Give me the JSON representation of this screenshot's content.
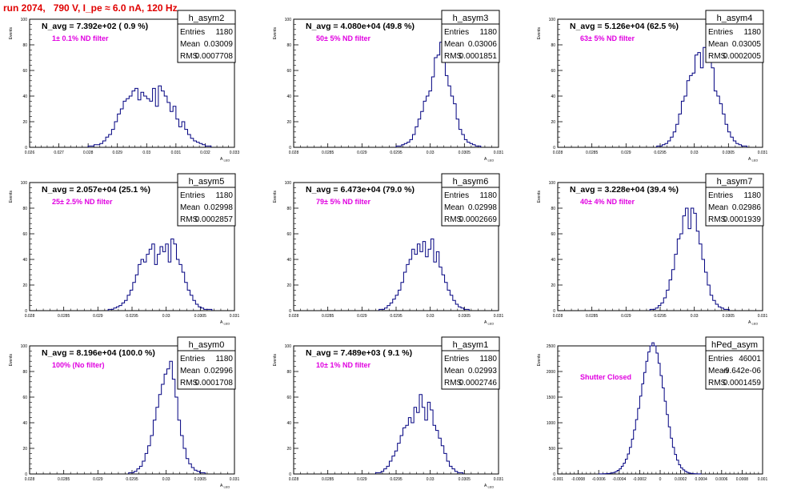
{
  "page": {
    "title": "run 2074,   790 V, I_pe ≈ 6.0 nA, 120 Hz",
    "title_color": "#e00000",
    "hist_color": "#000080",
    "note_color": "#e000e0"
  },
  "chart_data": [
    {
      "type": "histogram",
      "hist": "h_asym2",
      "nline": "N_avg = 7.392e+02 ( 0.9 %)",
      "note": "1± 0.1% ND filter",
      "stats": [
        [
          "Entries",
          "1180"
        ],
        [
          "Mean",
          "0.03009"
        ],
        [
          "RMS",
          "0.0007708"
        ]
      ],
      "ylabel": "Events",
      "xlabel": "A_LED",
      "xlim": [
        0.026,
        0.033
      ],
      "ylim": [
        0,
        100
      ],
      "xticks": [
        0.026,
        0.027,
        0.028,
        0.029,
        0.03,
        0.031,
        0.032,
        0.033
      ],
      "xtick_labels": [
        "0.026",
        "0.027",
        "0.028",
        "0.029",
        "0.03",
        "0.031",
        "0.032",
        "0.033"
      ],
      "yticks": [
        0,
        20,
        40,
        60,
        80,
        100
      ],
      "ytick_labels": [
        "0",
        "20",
        "40",
        "60",
        "80",
        "100"
      ],
      "bins": {
        "start": 0.028,
        "width": 0.0001,
        "counts": [
          1,
          1,
          2,
          2,
          3,
          5,
          8,
          10,
          14,
          20,
          26,
          30,
          36,
          38,
          40,
          44,
          46,
          37,
          43,
          40,
          38,
          36,
          46,
          32,
          48,
          44,
          40,
          35,
          28,
          32,
          22,
          16,
          20,
          14,
          10,
          7,
          5,
          4,
          3,
          2,
          1,
          1
        ]
      }
    },
    {
      "type": "histogram",
      "hist": "h_asym3",
      "nline": "N_avg = 4.080e+04 (49.8 %)",
      "note": "50± 5% ND filter",
      "stats": [
        [
          "Entries",
          "1180"
        ],
        [
          "Mean",
          "0.03006"
        ],
        [
          "RMS",
          "0.0001851"
        ]
      ],
      "ylabel": "Events",
      "xlabel": "A_LED",
      "xlim": [
        0.028,
        0.031
      ],
      "ylim": [
        0,
        100
      ],
      "xticks": [
        0.028,
        0.0285,
        0.029,
        0.0295,
        0.03,
        0.0305,
        0.031
      ],
      "xtick_labels": [
        "0.028",
        "0.0285",
        "0.029",
        "0.0295",
        "0.03",
        "0.0305",
        "0.031"
      ],
      "yticks": [
        0,
        20,
        40,
        60,
        80,
        100
      ],
      "ytick_labels": [
        "0",
        "20",
        "40",
        "60",
        "80",
        "100"
      ],
      "bins": {
        "start": 0.0295,
        "width": 4e-05,
        "counts": [
          1,
          1,
          2,
          3,
          4,
          6,
          10,
          16,
          22,
          28,
          36,
          40,
          44,
          55,
          70,
          72,
          82,
          74,
          56,
          48,
          40,
          34,
          22,
          14,
          10,
          6,
          4,
          3,
          2,
          1,
          1
        ]
      }
    },
    {
      "type": "histogram",
      "hist": "h_asym4",
      "nline": "N_avg = 5.126e+04 (62.5 %)",
      "note": "63± 5% ND filter",
      "stats": [
        [
          "Entries",
          "1180"
        ],
        [
          "Mean",
          "0.03005"
        ],
        [
          "RMS",
          "0.0002005"
        ]
      ],
      "ylabel": "Events",
      "xlabel": "A_LED",
      "xlim": [
        0.028,
        0.031
      ],
      "ylim": [
        0,
        100
      ],
      "xticks": [
        0.028,
        0.0285,
        0.029,
        0.0295,
        0.03,
        0.0305,
        0.031
      ],
      "xtick_labels": [
        "0.028",
        "0.0285",
        "0.029",
        "0.0295",
        "0.03",
        "0.0305",
        "0.031"
      ],
      "yticks": [
        0,
        20,
        40,
        60,
        80,
        100
      ],
      "ytick_labels": [
        "0",
        "20",
        "40",
        "60",
        "80",
        "100"
      ],
      "bins": {
        "start": 0.02945,
        "width": 4e-05,
        "counts": [
          1,
          1,
          2,
          3,
          5,
          8,
          12,
          18,
          26,
          36,
          40,
          52,
          56,
          58,
          72,
          74,
          62,
          78,
          68,
          70,
          62,
          44,
          40,
          34,
          26,
          18,
          12,
          8,
          5,
          3,
          2,
          1,
          1
        ]
      }
    },
    {
      "type": "histogram",
      "hist": "h_asym5",
      "nline": "N_avg = 2.057e+04 (25.1 %)",
      "note": "25± 2.5% ND filter",
      "stats": [
        [
          "Entries",
          "1180"
        ],
        [
          "Mean",
          "0.02998"
        ],
        [
          "RMS",
          "0.0002857"
        ]
      ],
      "ylabel": "Events",
      "xlabel": "A_LED",
      "xlim": [
        0.028,
        0.031
      ],
      "ylim": [
        0,
        100
      ],
      "xticks": [
        0.028,
        0.0285,
        0.029,
        0.0295,
        0.03,
        0.0305,
        0.031
      ],
      "xtick_labels": [
        "0.028",
        "0.0285",
        "0.029",
        "0.0295",
        "0.03",
        "0.0305",
        "0.031"
      ],
      "yticks": [
        0,
        20,
        40,
        60,
        80,
        100
      ],
      "ytick_labels": [
        "0",
        "20",
        "40",
        "60",
        "80",
        "100"
      ],
      "bins": {
        "start": 0.02915,
        "width": 4e-05,
        "counts": [
          1,
          1,
          2,
          3,
          4,
          6,
          8,
          12,
          16,
          22,
          28,
          36,
          40,
          38,
          44,
          48,
          52,
          36,
          44,
          50,
          46,
          52,
          38,
          56,
          52,
          40,
          36,
          30,
          22,
          16,
          12,
          8,
          5,
          3,
          2,
          1,
          1,
          1
        ]
      }
    },
    {
      "type": "histogram",
      "hist": "h_asym6",
      "nline": "N_avg = 6.473e+04 (79.0 %)",
      "note": "79± 5% ND filter",
      "stats": [
        [
          "Entries",
          "1180"
        ],
        [
          "Mean",
          "0.02998"
        ],
        [
          "RMS",
          "0.0002669"
        ]
      ],
      "ylabel": "Events",
      "xlabel": "A_LED",
      "xlim": [
        0.028,
        0.031
      ],
      "ylim": [
        0,
        100
      ],
      "xticks": [
        0.028,
        0.0285,
        0.029,
        0.0295,
        0.03,
        0.0305,
        0.031
      ],
      "xtick_labels": [
        "0.028",
        "0.0285",
        "0.029",
        "0.0295",
        "0.03",
        "0.0305",
        "0.031"
      ],
      "yticks": [
        0,
        20,
        40,
        60,
        80,
        100
      ],
      "ytick_labels": [
        "0",
        "20",
        "40",
        "60",
        "80",
        "100"
      ],
      "bins": {
        "start": 0.02925,
        "width": 4e-05,
        "counts": [
          1,
          1,
          2,
          4,
          6,
          9,
          12,
          16,
          22,
          30,
          36,
          40,
          48,
          44,
          52,
          46,
          54,
          42,
          48,
          56,
          38,
          46,
          34,
          28,
          22,
          16,
          12,
          8,
          5,
          3,
          2,
          1,
          1
        ]
      }
    },
    {
      "type": "histogram",
      "hist": "h_asym7",
      "nline": "N_avg = 3.228e+04 (39.4 %)",
      "note": "40± 4% ND filter",
      "stats": [
        [
          "Entries",
          "1180"
        ],
        [
          "Mean",
          "0.02986"
        ],
        [
          "RMS",
          "0.0001939"
        ]
      ],
      "ylabel": "Events",
      "xlabel": "A_LED",
      "xlim": [
        0.028,
        0.031
      ],
      "ylim": [
        0,
        100
      ],
      "xticks": [
        0.028,
        0.0285,
        0.029,
        0.0295,
        0.03,
        0.0305,
        0.031
      ],
      "xtick_labels": [
        "0.028",
        "0.0285",
        "0.029",
        "0.0295",
        "0.03",
        "0.0305",
        "0.031"
      ],
      "yticks": [
        0,
        20,
        40,
        60,
        80,
        100
      ],
      "ytick_labels": [
        "0",
        "20",
        "40",
        "60",
        "80",
        "100"
      ],
      "bins": {
        "start": 0.02935,
        "width": 4e-05,
        "counts": [
          1,
          1,
          2,
          4,
          6,
          10,
          16,
          24,
          32,
          44,
          56,
          60,
          74,
          80,
          64,
          80,
          76,
          62,
          52,
          40,
          30,
          20,
          12,
          8,
          5,
          3,
          2,
          1,
          1
        ]
      }
    },
    {
      "type": "histogram",
      "hist": "h_asym0",
      "nline": "N_avg = 8.196e+04 (100.0 %)",
      "note": "100% (No filter)",
      "stats": [
        [
          "Entries",
          "1180"
        ],
        [
          "Mean",
          "0.02996"
        ],
        [
          "RMS",
          "0.0001708"
        ]
      ],
      "ylabel": "Events",
      "xlabel": "A_LED",
      "xlim": [
        0.028,
        0.031
      ],
      "ylim": [
        0,
        100
      ],
      "xticks": [
        0.028,
        0.0285,
        0.029,
        0.0295,
        0.03,
        0.0305,
        0.031
      ],
      "xtick_labels": [
        "0.028",
        "0.0285",
        "0.029",
        "0.0295",
        "0.03",
        "0.0305",
        "0.031"
      ],
      "yticks": [
        0,
        20,
        40,
        60,
        80,
        100
      ],
      "ytick_labels": [
        "0",
        "20",
        "40",
        "60",
        "80",
        "100"
      ],
      "bins": {
        "start": 0.02945,
        "width": 4e-05,
        "counts": [
          1,
          1,
          2,
          4,
          6,
          10,
          16,
          22,
          30,
          42,
          52,
          62,
          70,
          78,
          82,
          88,
          74,
          60,
          42,
          30,
          20,
          12,
          8,
          5,
          3,
          2,
          1,
          1
        ]
      }
    },
    {
      "type": "histogram",
      "hist": "h_asym1",
      "nline": "N_avg = 7.489e+03 ( 9.1 %)",
      "note": "10± 1% ND filter",
      "stats": [
        [
          "Entries",
          "1180"
        ],
        [
          "Mean",
          "0.02993"
        ],
        [
          "RMS",
          "0.0002746"
        ]
      ],
      "ylabel": "Events",
      "xlabel": "A_LED",
      "xlim": [
        0.028,
        0.031
      ],
      "ylim": [
        0,
        100
      ],
      "xticks": [
        0.028,
        0.0285,
        0.029,
        0.0295,
        0.03,
        0.0305,
        0.031
      ],
      "xtick_labels": [
        "0.028",
        "0.0285",
        "0.029",
        "0.0295",
        "0.03",
        "0.0305",
        "0.031"
      ],
      "yticks": [
        0,
        20,
        40,
        60,
        80,
        100
      ],
      "ytick_labels": [
        "0",
        "20",
        "40",
        "60",
        "80",
        "100"
      ],
      "bins": {
        "start": 0.0292,
        "width": 4e-05,
        "counts": [
          1,
          1,
          2,
          4,
          6,
          10,
          14,
          18,
          24,
          30,
          36,
          38,
          44,
          40,
          52,
          48,
          62,
          52,
          42,
          56,
          50,
          38,
          34,
          28,
          22,
          16,
          10,
          6,
          4,
          2,
          1,
          1
        ]
      }
    },
    {
      "type": "histogram",
      "hist": "hPed_asym",
      "nline": "",
      "note": "Shutter Closed",
      "stats": [
        [
          "Entries",
          "46001"
        ],
        [
          "Mean",
          "-9.642e-06"
        ],
        [
          "RMS",
          "0.0001459"
        ]
      ],
      "ylabel": "Events",
      "xlabel": "",
      "xlim": [
        -0.001,
        0.001
      ],
      "ylim": [
        0,
        2500
      ],
      "xticks": [
        -0.001,
        -0.0008,
        -0.0006,
        -0.0004,
        -0.0002,
        0,
        0.0002,
        0.0004,
        0.0006,
        0.0008,
        0.001
      ],
      "xtick_labels": [
        "-0.001",
        "-0.0008",
        "-0.0006",
        "-0.0004",
        "-0.0002",
        "0",
        "0.0002",
        "0.0004",
        "0.0006",
        "0.0008",
        "0.001"
      ],
      "yticks": [
        0,
        500,
        1000,
        1500,
        2000,
        2500
      ],
      "ytick_labels": [
        "0",
        "500",
        "1000",
        "1500",
        "2000",
        "2500"
      ],
      "bins": {
        "start": -0.0006,
        "width": 2e-05,
        "counts": [
          1,
          2,
          3,
          5,
          8,
          12,
          20,
          30,
          45,
          70,
          100,
          150,
          210,
          290,
          390,
          520,
          680,
          860,
          1060,
          1280,
          1520,
          1760,
          1980,
          2200,
          2380,
          2500,
          2560,
          2500,
          2360,
          2160,
          1920,
          1680,
          1420,
          1160,
          920,
          700,
          520,
          380,
          270,
          180,
          120,
          80,
          50,
          30,
          18,
          10,
          6,
          3,
          2,
          1
        ]
      }
    }
  ]
}
